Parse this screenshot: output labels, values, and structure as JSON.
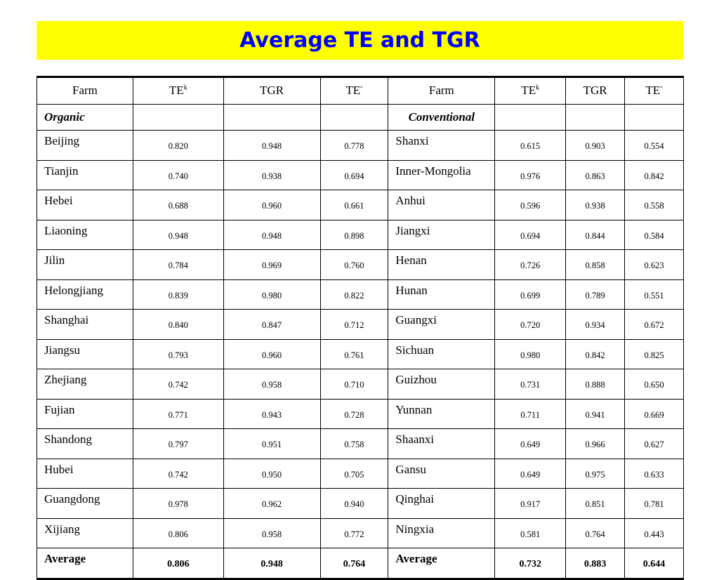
{
  "title": "Average TE and TGR",
  "headers": {
    "farm1": "Farm",
    "te_k1": "TE",
    "te_k1_sup": "k",
    "tgr1": "TGR",
    "te_star1": "TE",
    "te_star1_sup": "*",
    "farm2": "Farm",
    "te_k2": "TE",
    "te_k2_sup": "k",
    "tgr2": "TGR",
    "te_star2": "TE",
    "te_star2_sup": "*"
  },
  "groups": {
    "left": "Organic",
    "right": "Conventional"
  },
  "rows": [
    {
      "l_name": "Beijing",
      "l_tek": "0.820",
      "l_tgr": "0.948",
      "l_tes": "0.778",
      "r_name": "Shanxi",
      "r_tek": "0.615",
      "r_tgr": "0.903",
      "r_tes": "0.554"
    },
    {
      "l_name": "Tianjin",
      "l_tek": "0.740",
      "l_tgr": "0.938",
      "l_tes": "0.694",
      "r_name": "Inner-Mongolia",
      "r_tek": "0.976",
      "r_tgr": "0.863",
      "r_tes": "0.842"
    },
    {
      "l_name": "Hebei",
      "l_tek": "0.688",
      "l_tgr": "0.960",
      "l_tes": "0.661",
      "r_name": "Anhui",
      "r_tek": "0.596",
      "r_tgr": "0.938",
      "r_tes": "0.558"
    },
    {
      "l_name": "Liaoning",
      "l_tek": "0.948",
      "l_tgr": "0.948",
      "l_tes": "0.898",
      "r_name": "Jiangxi",
      "r_tek": "0.694",
      "r_tgr": "0.844",
      "r_tes": "0.584"
    },
    {
      "l_name": "Jilin",
      "l_tek": "0.784",
      "l_tgr": "0.969",
      "l_tes": "0.760",
      "r_name": "Henan",
      "r_tek": "0.726",
      "r_tgr": "0.858",
      "r_tes": "0.623"
    },
    {
      "l_name": "Helongjiang",
      "l_tek": "0.839",
      "l_tgr": "0.980",
      "l_tes": "0.822",
      "r_name": "Hunan",
      "r_tek": "0.699",
      "r_tgr": "0.789",
      "r_tes": "0.551"
    },
    {
      "l_name": "Shanghai",
      "l_tek": "0.840",
      "l_tgr": "0.847",
      "l_tes": "0.712",
      "r_name": "Guangxi",
      "r_tek": "0.720",
      "r_tgr": "0.934",
      "r_tes": "0.672"
    },
    {
      "l_name": "Jiangsu",
      "l_tek": "0.793",
      "l_tgr": "0.960",
      "l_tes": "0.761",
      "r_name": "Sichuan",
      "r_tek": "0.980",
      "r_tgr": "0.842",
      "r_tes": "0.825"
    },
    {
      "l_name": "Zhejiang",
      "l_tek": "0.742",
      "l_tgr": "0.958",
      "l_tes": "0.710",
      "r_name": "Guizhou",
      "r_tek": "0.731",
      "r_tgr": "0.888",
      "r_tes": "0.650"
    },
    {
      "l_name": "Fujian",
      "l_tek": "0.771",
      "l_tgr": "0.943",
      "l_tes": "0.728",
      "r_name": "Yunnan",
      "r_tek": "0.711",
      "r_tgr": "0.941",
      "r_tes": "0.669"
    },
    {
      "l_name": "Shandong",
      "l_tek": "0.797",
      "l_tgr": "0.951",
      "l_tes": "0.758",
      "r_name": "Shaanxi",
      "r_tek": "0.649",
      "r_tgr": "0.966",
      "r_tes": "0.627"
    },
    {
      "l_name": "Hubei",
      "l_tek": "0.742",
      "l_tgr": "0.950",
      "l_tes": "0.705",
      "r_name": "Gansu",
      "r_tek": "0.649",
      "r_tgr": "0.975",
      "r_tes": "0.633"
    },
    {
      "l_name": "Guangdong",
      "l_tek": "0.978",
      "l_tgr": "0.962",
      "l_tes": "0.940",
      "r_name": "Qinghai",
      "r_tek": "0.917",
      "r_tgr": "0.851",
      "r_tes": "0.781"
    },
    {
      "l_name": "Xijiang",
      "l_tek": "0.806",
      "l_tgr": "0.958",
      "l_tes": "0.772",
      "r_name": "Ningxia",
      "r_tek": "0.581",
      "r_tgr": "0.764",
      "r_tes": "0.443"
    }
  ],
  "average": {
    "l_name": "Average",
    "l_tek": "0.806",
    "l_tgr": "0.948",
    "l_tes": "0.764",
    "r_name": "Average",
    "r_tek": "0.732",
    "r_tgr": "0.883",
    "r_tes": "0.644"
  },
  "colors": {
    "title_bg": "#ffff00",
    "title_text": "#0000ff"
  }
}
